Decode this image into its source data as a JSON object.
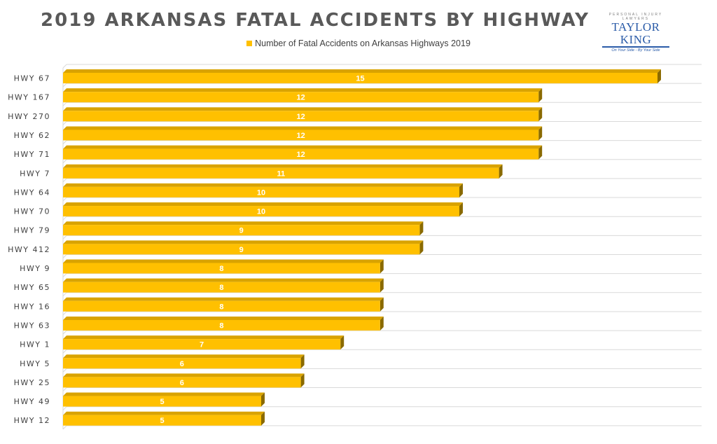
{
  "title": "2019 ARKANSAS FATAL ACCIDENTS BY HIGHWAY",
  "logo": {
    "top_text": "PERSONAL INJURY LAWYERS",
    "name": "TAYLOR KING",
    "tagline": "On Your Side - By Your Side"
  },
  "colors": {
    "bar_face": "#ffc000",
    "bar_top": "#d9a300",
    "bar_side": "#8a6a00",
    "grid": "#d9d9d9",
    "title": "#595959"
  },
  "chart_data": {
    "type": "bar",
    "orientation": "horizontal",
    "title": "2019 ARKANSAS FATAL ACCIDENTS BY HIGHWAY",
    "xlabel": "",
    "ylabel": "",
    "categories": [
      "HWY 67",
      "HWY 167",
      "HWY 270",
      "HWY 62",
      "HWY 71",
      "HWY 7",
      "HWY 64",
      "HWY 70",
      "HWY 79",
      "HWY 412",
      "HWY 9",
      "HWY 65",
      "HWY 16",
      "HWY 63",
      "HWY 1",
      "HWY 5",
      "HWY 25",
      "HWY 49",
      "HWY 12"
    ],
    "series": [
      {
        "name": "Number of Fatal Accidents on Arkansas Highways 2019",
        "values": [
          15,
          12,
          12,
          12,
          12,
          11,
          10,
          10,
          9,
          9,
          8,
          8,
          8,
          8,
          7,
          6,
          6,
          5,
          5
        ]
      }
    ],
    "xlim": [
      0,
      16
    ],
    "grid": true,
    "legend": "top",
    "data_labels": true
  }
}
